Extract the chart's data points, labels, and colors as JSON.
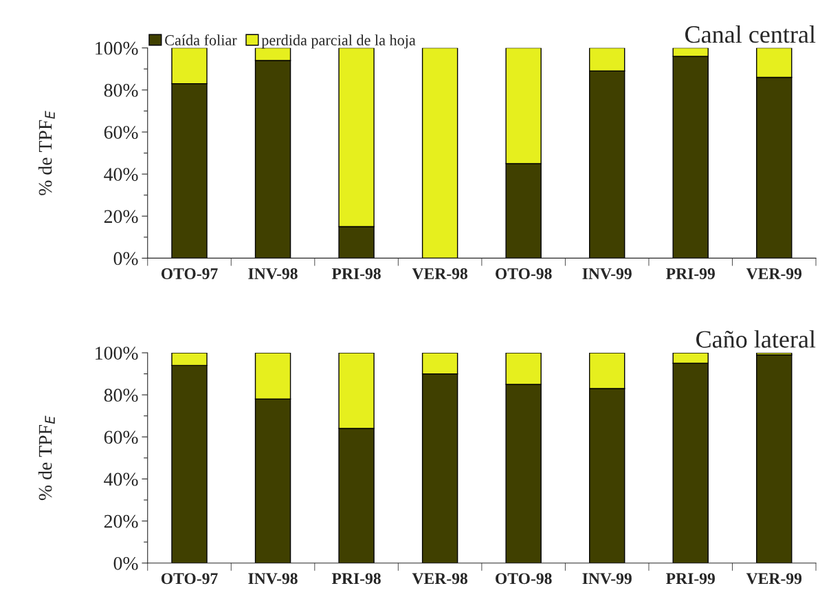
{
  "chart_data": [
    {
      "type": "bar",
      "title": "Canal central",
      "ylabel": "% de TPF$_{E}$",
      "stacked": true,
      "legend": "top left",
      "categories": [
        "OTO-97",
        "INV-98",
        "PRI-98",
        "VER-98",
        "OTO-98",
        "INV-99",
        "PRI-99",
        "VER-99"
      ],
      "series": [
        {
          "name": "Caída foliar",
          "color": "#404000",
          "values": [
            83,
            94,
            15,
            0,
            45,
            89,
            96,
            86
          ]
        },
        {
          "name": "perdida parcial de la hoja",
          "color": "#e6ef1e",
          "values": [
            17,
            6,
            85,
            100,
            55,
            11,
            4,
            14
          ]
        }
      ],
      "ylim": [
        0,
        100
      ],
      "yticks": [
        {
          "value": 0,
          "label": "0%"
        },
        {
          "value": 10,
          "label": null
        },
        {
          "value": 20,
          "label": "20%"
        },
        {
          "value": 30,
          "label": null
        },
        {
          "value": 40,
          "label": "40%"
        },
        {
          "value": 50,
          "label": null
        },
        {
          "value": 60,
          "label": "60%"
        },
        {
          "value": 70,
          "label": null
        },
        {
          "value": 80,
          "label": "80%"
        },
        {
          "value": 90,
          "label": null
        },
        {
          "value": 100,
          "label": "100%"
        }
      ]
    },
    {
      "type": "bar",
      "title": "Caño lateral",
      "ylabel": "% de TPF$_{E}$",
      "stacked": true,
      "legend": false,
      "categories": [
        "OTO-97",
        "INV-98",
        "PRI-98",
        "VER-98",
        "OTO-98",
        "INV-99",
        "PRI-99",
        "VER-99"
      ],
      "series": [
        {
          "color": "#404000",
          "values": [
            94,
            78,
            64,
            90,
            85,
            83,
            95,
            99
          ]
        },
        {
          "color": "#e6ef1e",
          "values": [
            6,
            22,
            36,
            10,
            15,
            17,
            5,
            1
          ]
        }
      ],
      "ylim": [
        0,
        100
      ],
      "yticks": [
        {
          "value": 0,
          "label": "0%"
        },
        {
          "value": 10,
          "label": null
        },
        {
          "value": 20,
          "label": "20%"
        },
        {
          "value": 30,
          "label": null
        },
        {
          "value": 40,
          "label": "40%"
        },
        {
          "value": 50,
          "label": null
        },
        {
          "value": 60,
          "label": "60%"
        },
        {
          "value": 70,
          "label": null
        },
        {
          "value": 80,
          "label": "80%"
        },
        {
          "value": 90,
          "label": null
        },
        {
          "value": 100,
          "label": "100%"
        }
      ]
    }
  ]
}
